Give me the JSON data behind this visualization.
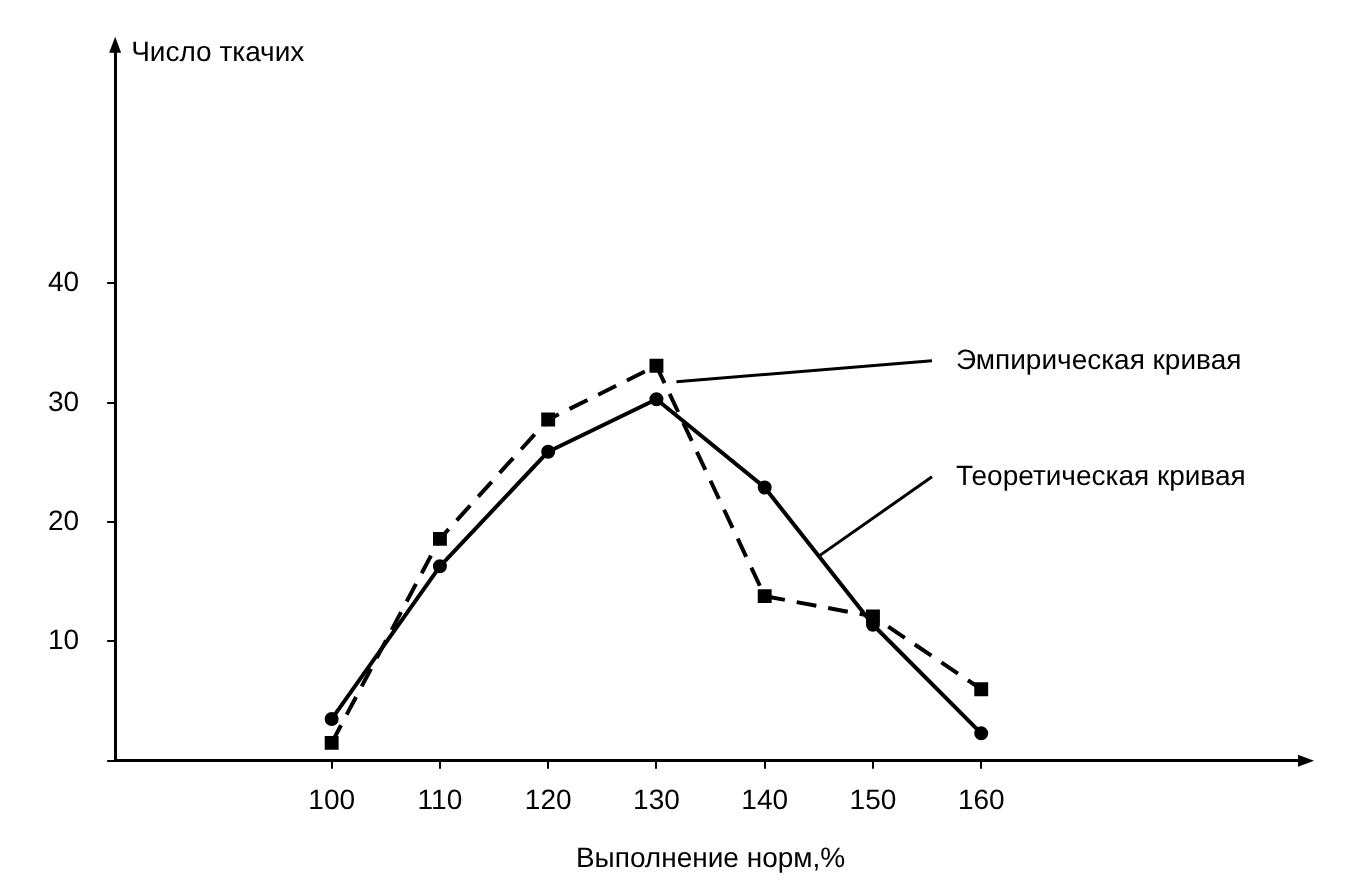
{
  "chart_data": {
    "type": "line",
    "xlabel": "Выполнение норм,%",
    "ylabel": "Число ткачих",
    "x": [
      100,
      110,
      120,
      130,
      140,
      150,
      160
    ],
    "series": [
      {
        "name": "Эмпирическая кривая",
        "color": "#000000",
        "values": [
          1.5,
          18.6,
          28.6,
          33.1,
          13.8,
          12.1,
          6.0
        ],
        "line_style": "dashed",
        "marker": "square"
      },
      {
        "name": "Теоретическая кривая",
        "color": "#000000",
        "values": [
          3.5,
          16.3,
          25.9,
          30.3,
          22.9,
          11.4,
          2.3
        ],
        "line_style": "solid",
        "marker": "circle"
      }
    ],
    "xlim": [
      80,
      190
    ],
    "xticks": [
      100,
      110,
      120,
      130,
      140,
      150,
      160
    ],
    "ylim": [
      0,
      60
    ],
    "yticks": [
      {
        "value": 0,
        "label": null
      },
      10,
      20,
      30,
      40
    ],
    "grid": false,
    "legend": false
  }
}
